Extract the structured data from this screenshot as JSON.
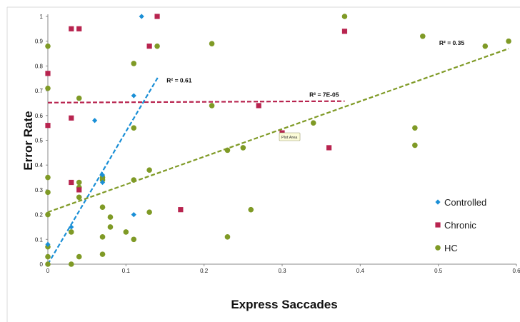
{
  "chart_data": {
    "type": "scatter",
    "title": "",
    "xlabel": "Express Saccades",
    "ylabel": "Error Rate",
    "xlim": [
      0,
      0.6
    ],
    "ylim": [
      0,
      1
    ],
    "x_ticks": [
      "0",
      "0.1",
      "0.2",
      "0.3",
      "0.4",
      "0.5",
      "0.6"
    ],
    "y_ticks": [
      "0",
      "0.1",
      "0.2",
      "0.3",
      "0.4",
      "0.5",
      "0.6",
      "0.7",
      "0.8",
      "0.9",
      "1"
    ],
    "grid": "none",
    "legend_position": "right",
    "tooltip_label": "Plot Area",
    "series": [
      {
        "name": "Controlled",
        "marker": "diamond",
        "color": "#1a8fd6",
        "points": [
          [
            0,
            0.08
          ],
          [
            0.03,
            0.15
          ],
          [
            0.06,
            0.58
          ],
          [
            0.07,
            0.36
          ],
          [
            0.07,
            0.33
          ],
          [
            0.11,
            0.68
          ],
          [
            0.11,
            0.2
          ],
          [
            0.12,
            1.0
          ]
        ],
        "trendline": {
          "type": "linear",
          "color": "#1a8fd6",
          "r2_label": "R² = 0.61",
          "x_range": [
            0,
            0.142
          ],
          "y_range": [
            0.0,
            0.76
          ]
        }
      },
      {
        "name": "Chronic",
        "marker": "square",
        "color": "#b8244f",
        "points": [
          [
            0,
            0.77
          ],
          [
            0,
            0.56
          ],
          [
            0.03,
            0.95
          ],
          [
            0.04,
            0.95
          ],
          [
            0.03,
            0.59
          ],
          [
            0.03,
            0.33
          ],
          [
            0.04,
            0.3
          ],
          [
            0.13,
            0.88
          ],
          [
            0.14,
            1.0
          ],
          [
            0.17,
            0.22
          ],
          [
            0.27,
            0.64
          ],
          [
            0.3,
            0.53
          ],
          [
            0.36,
            0.47
          ],
          [
            0.38,
            0.94
          ]
        ],
        "trendline": {
          "type": "linear",
          "color": "#b8244f",
          "r2_label": "R² = 7E-05",
          "x_range": [
            0,
            0.38
          ],
          "y_range": [
            0.652,
            0.658
          ]
        }
      },
      {
        "name": "HC",
        "marker": "circle",
        "color": "#7f9a26",
        "points": [
          [
            0,
            0.88
          ],
          [
            0,
            0.71
          ],
          [
            0,
            0.35
          ],
          [
            0,
            0.29
          ],
          [
            0,
            0.2
          ],
          [
            0,
            0.07
          ],
          [
            0,
            0.03
          ],
          [
            0,
            0.0
          ],
          [
            0.03,
            0.13
          ],
          [
            0.03,
            0.0
          ],
          [
            0.04,
            0.67
          ],
          [
            0.04,
            0.33
          ],
          [
            0.04,
            0.31
          ],
          [
            0.04,
            0.27
          ],
          [
            0.04,
            0.03
          ],
          [
            0.07,
            0.35
          ],
          [
            0.07,
            0.34
          ],
          [
            0.07,
            0.23
          ],
          [
            0.07,
            0.11
          ],
          [
            0.07,
            0.04
          ],
          [
            0.08,
            0.19
          ],
          [
            0.08,
            0.15
          ],
          [
            0.1,
            0.13
          ],
          [
            0.11,
            0.81
          ],
          [
            0.11,
            0.55
          ],
          [
            0.11,
            0.34
          ],
          [
            0.11,
            0.1
          ],
          [
            0.13,
            0.38
          ],
          [
            0.13,
            0.21
          ],
          [
            0.14,
            0.88
          ],
          [
            0.21,
            0.89
          ],
          [
            0.21,
            0.64
          ],
          [
            0.23,
            0.46
          ],
          [
            0.23,
            0.11
          ],
          [
            0.25,
            0.47
          ],
          [
            0.26,
            0.22
          ],
          [
            0.34,
            0.57
          ],
          [
            0.38,
            1.0
          ],
          [
            0.47,
            0.55
          ],
          [
            0.47,
            0.48
          ],
          [
            0.48,
            0.92
          ],
          [
            0.56,
            0.88
          ],
          [
            0.59,
            0.9
          ]
        ],
        "trendline": {
          "type": "linear",
          "color": "#7f9a26",
          "r2_label": "R² = 0.35",
          "x_range": [
            0,
            0.59
          ],
          "y_range": [
            0.21,
            0.87
          ]
        }
      }
    ]
  }
}
